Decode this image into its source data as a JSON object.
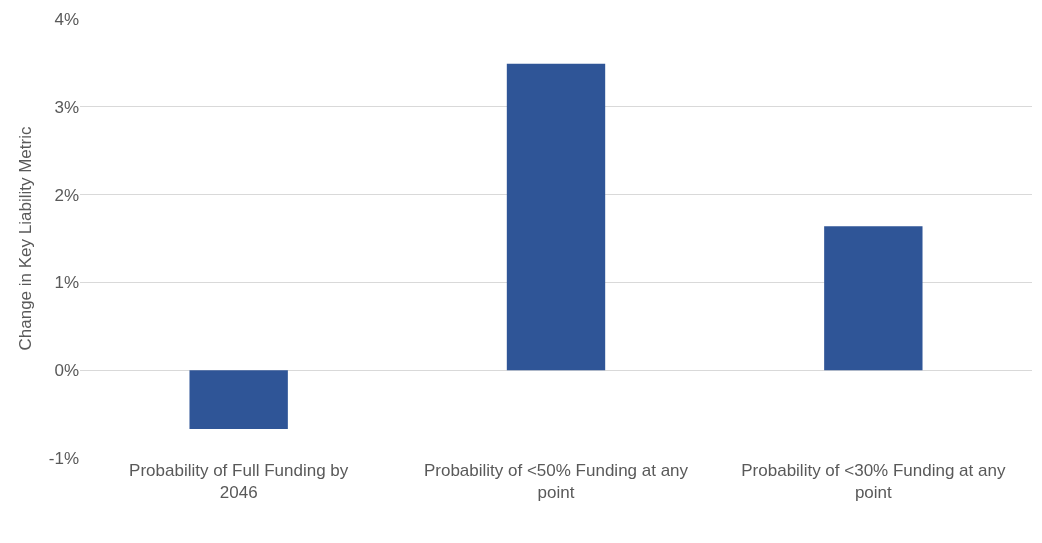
{
  "chart_data": {
    "type": "bar",
    "ylabel": "Change in Key Liability Metric",
    "categories": [
      "Probability of Full Funding by 2046",
      "Probability of <50% Funding at any point",
      "Probability of <30% Funding at any point"
    ],
    "values": [
      -0.67,
      3.49,
      1.64
    ],
    "color": "#2f5597",
    "ylim": [
      -1,
      4
    ],
    "yticks": [
      {
        "value": -1,
        "label": "-1%"
      },
      {
        "value": 0,
        "label": "0%"
      },
      {
        "value": 1,
        "label": "1%"
      },
      {
        "value": 2,
        "label": "2%"
      },
      {
        "value": 3,
        "label": "3%"
      },
      {
        "value": 4,
        "label": "4%"
      }
    ],
    "grid": "y"
  }
}
